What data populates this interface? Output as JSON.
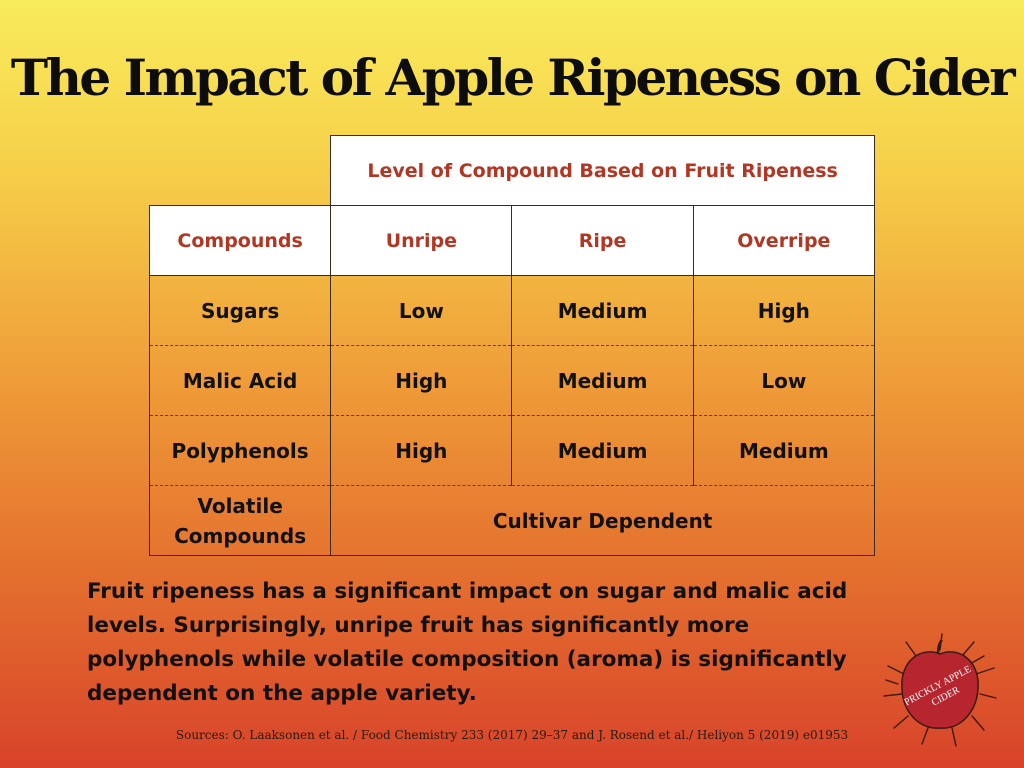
{
  "title": "The Impact of Apple Ripeness on Cider",
  "table": {
    "group_header": "Level of Compound Based on Fruit Ripeness",
    "columns": [
      "Compounds",
      "Unripe",
      "Ripe",
      "Overripe"
    ],
    "rows": [
      {
        "compound": "Sugars",
        "unripe": "Low",
        "ripe": "Medium",
        "overripe": "High"
      },
      {
        "compound": "Malic Acid",
        "unripe": "High",
        "ripe": "Medium",
        "overripe": "Low"
      },
      {
        "compound": "Polyphenols",
        "unripe": "High",
        "ripe": "Medium",
        "overripe": "Medium"
      }
    ],
    "volatile": {
      "compound_line1": "Volatile",
      "compound_line2": "Compounds",
      "value": "Cultivar Dependent"
    }
  },
  "paragraph": "Fruit ripeness has a significant impact on sugar and malic acid levels.  Surprisingly, unripe fruit has significantly more polyphenols while volatile composition (aroma) is significantly dependent on the apple variety.",
  "sources": "Sources: O. Laaksonen et al. / Food Chemistry 233 (2017) 29–37 and J. Rosend et al./ Heliyon 5 (2019) e01953",
  "logo": {
    "icon": "prickly-apple-logo",
    "line1": "PRICKLY APPLE",
    "line2": "CIDER",
    "color": "#b7262f"
  }
}
